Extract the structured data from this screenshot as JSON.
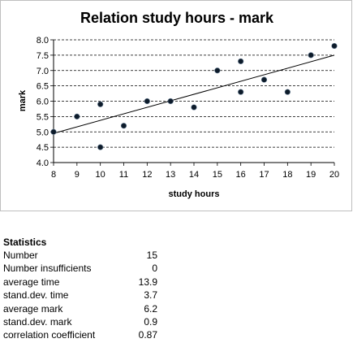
{
  "chart_data": {
    "type": "scatter",
    "title": "Relation  study hours - mark",
    "xlabel": "study hours",
    "ylabel": "mark",
    "xlim": [
      8,
      20
    ],
    "ylim": [
      4.0,
      8.0
    ],
    "x_ticks": [
      "8",
      "9",
      "10",
      "11",
      "12",
      "13",
      "14",
      "15",
      "16",
      "17",
      "18",
      "19",
      "20"
    ],
    "y_ticks": [
      "4.0",
      "4.5",
      "5.0",
      "5.5",
      "6.0",
      "6.5",
      "7.0",
      "7.5",
      "8.0"
    ],
    "grid": "horizontal dashed",
    "legend": "none",
    "points": [
      {
        "x": 8,
        "y": 5.0
      },
      {
        "x": 9,
        "y": 5.5
      },
      {
        "x": 10,
        "y": 5.9
      },
      {
        "x": 10,
        "y": 4.5
      },
      {
        "x": 11,
        "y": 5.2
      },
      {
        "x": 12,
        "y": 6.0
      },
      {
        "x": 13,
        "y": 6.0
      },
      {
        "x": 14,
        "y": 5.8
      },
      {
        "x": 15,
        "y": 7.0
      },
      {
        "x": 16,
        "y": 7.3
      },
      {
        "x": 16,
        "y": 6.3
      },
      {
        "x": 17,
        "y": 6.7
      },
      {
        "x": 18,
        "y": 6.3
      },
      {
        "x": 19,
        "y": 7.5
      },
      {
        "x": 20,
        "y": 7.8
      }
    ],
    "trendline": {
      "x": [
        8,
        20
      ],
      "y": [
        4.95,
        7.5
      ]
    },
    "colors": {
      "marker": "#0d1b2a",
      "trendline": "#000000",
      "grid": "#000000"
    }
  },
  "statistics": {
    "heading": "Statistics",
    "rows": [
      {
        "label": "Number",
        "value": "15"
      },
      {
        "label": "Number insufficients",
        "value": "0"
      },
      {
        "label": "average time",
        "value": "13.9"
      },
      {
        "label": "stand.dev. time",
        "value": "3.7"
      },
      {
        "label": "average mark",
        "value": "6.2"
      },
      {
        "label": "stand.dev. mark",
        "value": "0.9"
      },
      {
        "label": "correlation coefficient",
        "value": "0.87"
      }
    ]
  }
}
